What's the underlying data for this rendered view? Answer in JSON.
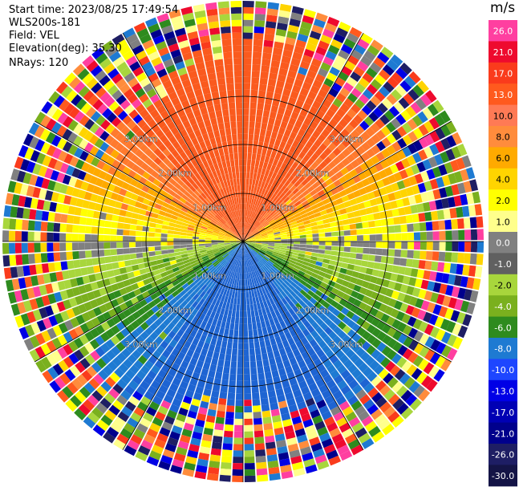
{
  "info": {
    "start_time": "Start time: 2023/08/25 17:49:54",
    "instrument": "WLS200s-181",
    "field": "Field: VEL",
    "elevation": "Elevation(deg): 35.30",
    "nrays": "NRays: 120"
  },
  "colorbar": {
    "unit": "m/s",
    "ticks": [
      "26.0",
      "21.0",
      "17.0",
      "13.0",
      "10.0",
      "8.0",
      "6.0",
      "4.0",
      "2.0",
      "1.0",
      "0.0",
      "-1.0",
      "-2.0",
      "-4.0",
      "-6.0",
      "-8.0",
      "-10.0",
      "-13.0",
      "-17.0",
      "-21.0",
      "-26.0",
      "-30.0"
    ],
    "colors": [
      "#ff3fa0",
      "#ee0a2e",
      "#fa3b1c",
      "#ff5a1e",
      "#ff7a55",
      "#ff8c3c",
      "#ffaa00",
      "#ffd400",
      "#ffff00",
      "#ffff8c",
      "#808080",
      "#606060",
      "#a8d63c",
      "#7ab01e",
      "#2e8b1e",
      "#1e7ad2",
      "#1e46ff",
      "#0000e6",
      "#0000b4",
      "#00008c",
      "#1e1e64",
      "#141446"
    ]
  },
  "chart_data": {
    "type": "polar-ppi",
    "field": "VEL",
    "units": "m/s",
    "n_rays": 120,
    "range_ring_labels": [
      "1.00km",
      "2.00km",
      "3.00km"
    ],
    "velocity_pattern": {
      "north_sector": "positive 6 to 13 m/s (orange/red)",
      "east_west_axis": "near 0 m/s (grey/yellow)",
      "south_sector": "negative -6 to -13 m/s (green/blue)",
      "outer_ring": "noise beyond ~3.6 km"
    }
  }
}
